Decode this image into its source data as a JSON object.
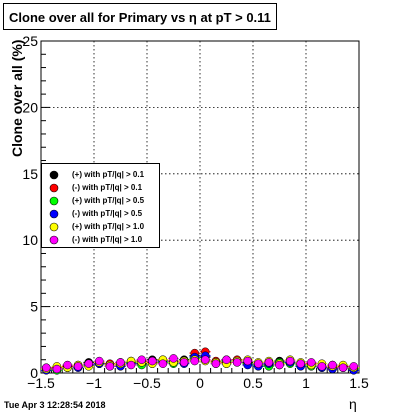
{
  "title": "Clone  over all for Primary vs   η at pT > 0.11",
  "timestamp": "Tue Apr  3 12:28:54 2018",
  "chart_data": {
    "type": "scatter",
    "title": "Clone  over all for Primary vs   η at pT > 0.11",
    "xlabel": "η",
    "ylabel": "Clone  over all (%)",
    "xlim": [
      -1.5,
      1.5
    ],
    "ylim": [
      0,
      25
    ],
    "xticks": [
      "−1.5",
      "−1",
      "−0.5",
      "0",
      "0.5",
      "1",
      "1.5"
    ],
    "yticks": [
      "0",
      "5",
      "10",
      "15",
      "20",
      "25"
    ],
    "grid": true,
    "legend_position": "middle-left",
    "x": [
      -1.45,
      -1.35,
      -1.25,
      -1.15,
      -1.05,
      -0.95,
      -0.85,
      -0.75,
      -0.65,
      -0.55,
      -0.45,
      -0.35,
      -0.25,
      -0.15,
      -0.05,
      0.05,
      0.15,
      0.25,
      0.35,
      0.45,
      0.55,
      0.65,
      0.75,
      0.85,
      0.95,
      1.05,
      1.15,
      1.25,
      1.35,
      1.45
    ],
    "series": [
      {
        "name": "(+) with pT/|q| > 0.1",
        "color": "#000000",
        "values": [
          0.4,
          0.3,
          0.5,
          0.6,
          0.8,
          0.7,
          0.6,
          0.8,
          0.9,
          0.7,
          1.0,
          0.9,
          0.8,
          1.0,
          1.3,
          1.2,
          0.8,
          1.0,
          0.9,
          0.8,
          0.7,
          0.6,
          0.9,
          0.8,
          0.7,
          0.6,
          0.5,
          0.6,
          0.5,
          0.4
        ]
      },
      {
        "name": "(-) with pT/|q| > 0.1",
        "color": "#ff0000",
        "values": [
          0.3,
          0.4,
          0.5,
          0.5,
          0.7,
          0.8,
          0.7,
          0.6,
          0.8,
          0.9,
          0.8,
          1.0,
          0.9,
          0.8,
          1.5,
          1.6,
          0.9,
          0.8,
          1.0,
          0.7,
          0.6,
          0.8,
          0.7,
          0.9,
          0.6,
          0.7,
          0.5,
          0.4,
          0.5,
          0.3
        ]
      },
      {
        "name": "(+) with pT/|q| > 0.5",
        "color": "#00ff00",
        "values": [
          0.3,
          0.2,
          0.4,
          0.5,
          0.6,
          0.7,
          0.5,
          0.7,
          0.8,
          0.6,
          0.9,
          0.8,
          0.7,
          0.9,
          1.1,
          1.0,
          0.7,
          0.9,
          0.8,
          0.7,
          0.6,
          0.5,
          0.8,
          0.7,
          0.6,
          0.5,
          0.4,
          0.5,
          0.4,
          0.3
        ]
      },
      {
        "name": "(-) with pT/|q| > 0.5",
        "color": "#0000ff",
        "values": [
          0.2,
          0.3,
          0.4,
          0.4,
          0.6,
          0.7,
          0.6,
          0.5,
          0.7,
          0.8,
          0.7,
          0.9,
          0.8,
          0.7,
          1.2,
          1.3,
          0.8,
          0.7,
          0.9,
          0.6,
          0.5,
          0.7,
          0.6,
          0.8,
          0.5,
          0.6,
          0.4,
          0.3,
          0.4,
          0.2
        ]
      },
      {
        "name": "(+) with pT/|q| > 1.0",
        "color": "#ffff00",
        "values": [
          0.3,
          0.5,
          0.4,
          0.6,
          0.5,
          0.8,
          0.6,
          0.7,
          0.9,
          0.8,
          0.7,
          1.0,
          0.8,
          0.9,
          1.0,
          0.9,
          0.8,
          0.7,
          0.9,
          1.0,
          0.8,
          0.9,
          0.7,
          1.0,
          0.8,
          0.6,
          0.7,
          0.5,
          0.6,
          0.4
        ]
      },
      {
        "name": "(-) with pT/|q| > 1.0",
        "color": "#ff00ff",
        "values": [
          0.4,
          0.3,
          0.6,
          0.5,
          0.7,
          0.9,
          0.5,
          0.8,
          0.6,
          1.0,
          0.9,
          0.7,
          1.1,
          0.8,
          0.9,
          1.0,
          0.7,
          1.0,
          0.8,
          0.9,
          0.7,
          0.8,
          0.6,
          0.9,
          0.7,
          0.8,
          0.5,
          0.6,
          0.4,
          0.5
        ]
      }
    ]
  }
}
